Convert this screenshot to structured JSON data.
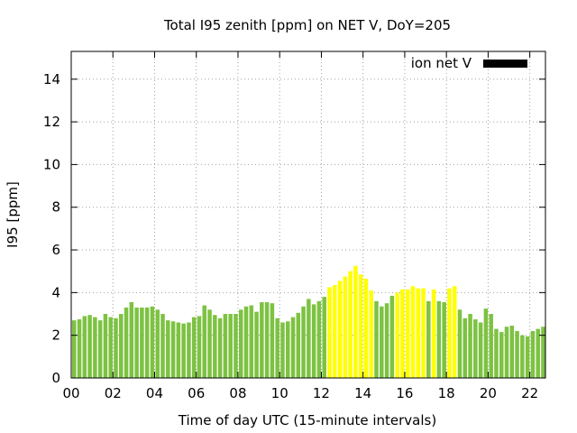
{
  "chart_data": {
    "type": "bar",
    "title": "Total I95 zenith [ppm] on NET V, DoY=205",
    "xlabel": "Time of day UTC (15-minute intervals)",
    "ylabel": "I95 [ppm]",
    "xlim": [
      0,
      22.75
    ],
    "ylim": [
      0,
      15.3
    ],
    "x_ticks": [
      "00",
      "02",
      "04",
      "06",
      "08",
      "10",
      "12",
      "14",
      "16",
      "18",
      "20",
      "22"
    ],
    "y_ticks": [
      "0",
      "2",
      "4",
      "6",
      "8",
      "10",
      "12",
      "14"
    ],
    "grid": true,
    "legend": {
      "label": "ion net V",
      "color": "#000000",
      "position": "top-right"
    },
    "colors": {
      "normal": "#7dc242",
      "highlight": "#ffff00"
    },
    "bar_interval_hours": 0.25,
    "values": [
      2.7,
      2.75,
      2.9,
      2.95,
      2.85,
      2.7,
      3.0,
      2.85,
      2.8,
      3.0,
      3.3,
      3.55,
      3.3,
      3.3,
      3.3,
      3.35,
      3.2,
      3.0,
      2.7,
      2.65,
      2.6,
      2.55,
      2.6,
      2.85,
      2.9,
      3.4,
      3.2,
      2.95,
      2.8,
      3.0,
      3.0,
      3.0,
      3.2,
      3.35,
      3.4,
      3.1,
      3.55,
      3.55,
      3.5,
      2.8,
      2.6,
      2.65,
      2.85,
      3.05,
      3.35,
      3.7,
      3.45,
      3.6,
      3.8,
      4.25,
      4.35,
      4.55,
      4.75,
      5.0,
      5.25,
      4.85,
      4.65,
      4.1,
      3.6,
      3.35,
      3.5,
      3.85,
      4.0,
      4.15,
      4.15,
      4.3,
      4.2,
      4.2,
      3.6,
      4.15,
      3.6,
      3.55,
      4.2,
      4.3,
      3.2,
      2.8,
      3.0,
      2.75,
      2.6,
      3.25,
      3.0,
      2.3,
      2.15,
      2.4,
      2.45,
      2.2,
      2.0,
      1.95,
      2.2,
      2.3,
      2.4
    ],
    "highlight_index_ranges": [
      [
        49,
        57
      ],
      [
        62,
        67
      ],
      [
        69,
        69
      ],
      [
        72,
        73
      ]
    ]
  }
}
